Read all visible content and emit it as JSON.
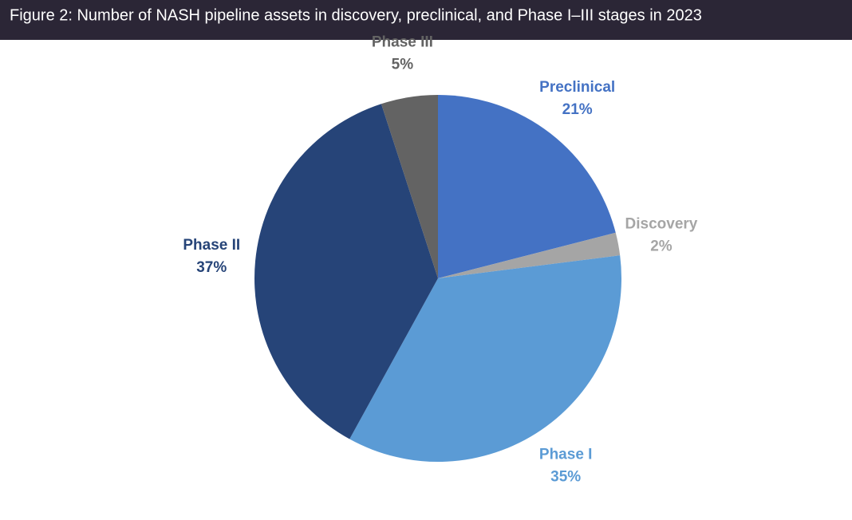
{
  "chart_data": {
    "type": "pie",
    "title": "Figure 2: Number of NASH pipeline assets in discovery, preclinical, and Phase I–III stages in 2023",
    "categories": [
      "Preclinical",
      "Discovery",
      "Phase I",
      "Phase II",
      "Phase III"
    ],
    "values": [
      21,
      2,
      35,
      37,
      5
    ],
    "value_labels": [
      "21%",
      "2%",
      "35%",
      "37%",
      "5%"
    ],
    "colors": [
      "#4472c4",
      "#a5a5a5",
      "#5b9bd5",
      "#264478",
      "#636363"
    ]
  }
}
